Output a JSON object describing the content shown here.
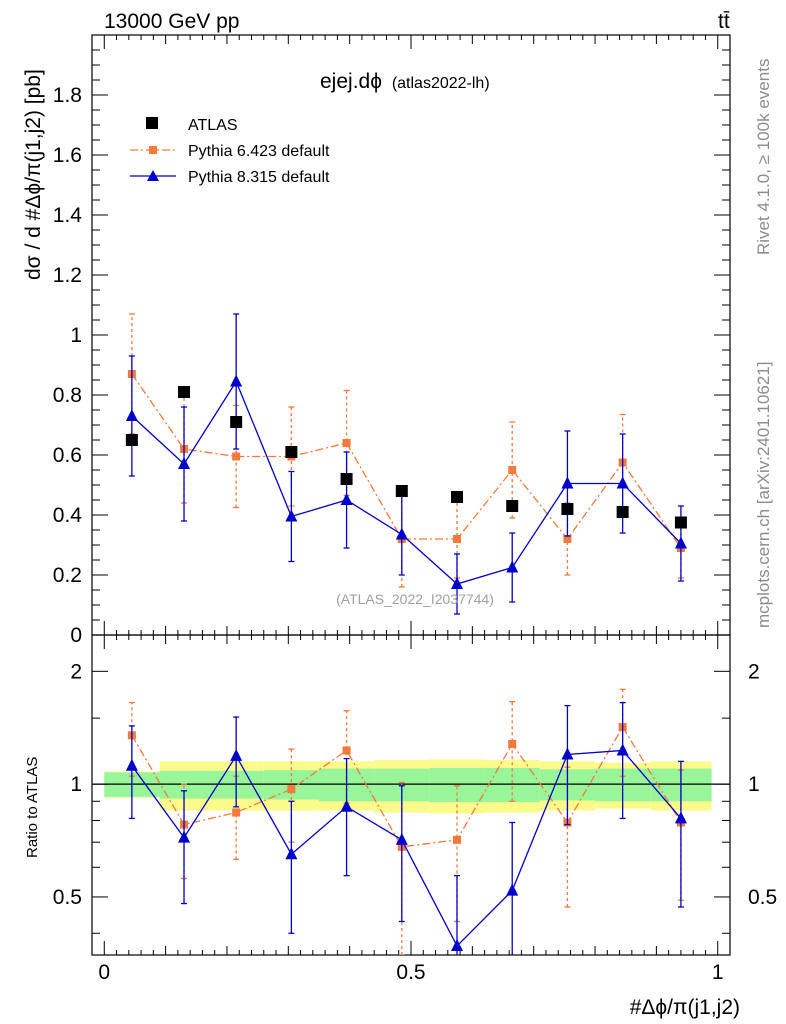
{
  "header": {
    "energy_label": "13000 GeV pp",
    "process_label": "tt̄"
  },
  "side_labels": {
    "rivet": "Rivet 4.1.0, ≥ 100k events",
    "mcplots": "mcplots.cern.ch [arXiv:2401.10621]"
  },
  "colors": {
    "atlas": "#000000",
    "pythia6": "#f4793b",
    "pythia8": "#0000cc",
    "band_inner": "#99f599",
    "band_outer": "#fbfb8c"
  },
  "chart_data": [
    {
      "type": "scatter",
      "panel": "main",
      "title": "ejej.dϕ",
      "title_note": "(atlas2022-lh)",
      "watermark": "(ATLAS_2022_I2037744)",
      "ylabel": "dσ / d #Δϕ/π(j1,j2) [pb]",
      "ylim": [
        0,
        2.0
      ],
      "yticks": [
        0,
        0.2,
        0.4,
        0.6,
        0.8,
        1,
        1.2,
        1.4,
        1.6,
        1.8
      ],
      "ytick_labels": [
        "0",
        "0.2",
        "0.4",
        "0.6",
        "0.8",
        "1",
        "1.2",
        "1.4",
        "1.6",
        "1.8"
      ],
      "legend_position": "top-left",
      "x": [
        0.045,
        0.13,
        0.215,
        0.305,
        0.395,
        0.485,
        0.575,
        0.665,
        0.755,
        0.845,
        0.94
      ],
      "series": [
        {
          "name": "ATLAS",
          "style": "square",
          "values": [
            0.65,
            0.81,
            0.71,
            0.61,
            0.52,
            0.48,
            0.46,
            0.43,
            0.42,
            0.41,
            0.375
          ]
        },
        {
          "name": "Pythia 6.423 default",
          "style": "dashdot-square",
          "values": [
            0.87,
            0.62,
            0.595,
            0.595,
            0.64,
            0.32,
            0.32,
            0.55,
            0.32,
            0.575,
            0.29
          ],
          "errors": [
            0.2,
            0.18,
            0.17,
            0.165,
            0.175,
            0.16,
            0.13,
            0.16,
            0.12,
            0.16,
            0.1
          ]
        },
        {
          "name": "Pythia 8.315 default",
          "style": "solid-triangle",
          "values": [
            0.73,
            0.57,
            0.845,
            0.395,
            0.45,
            0.335,
            0.17,
            0.225,
            0.505,
            0.505,
            0.305
          ],
          "errors": [
            0.2,
            0.19,
            0.225,
            0.15,
            0.16,
            0.135,
            0.1,
            0.115,
            0.175,
            0.165,
            0.125
          ]
        }
      ]
    },
    {
      "type": "scatter",
      "panel": "ratio",
      "ylabel": "Ratio to ATLAS",
      "xlabel": "#Δϕ/π(j1,j2)",
      "ylim": [
        0.35,
        2.5
      ],
      "log_y": true,
      "yticks": [
        0.5,
        1,
        2
      ],
      "ytick_labels": [
        "0.5",
        "1",
        "2"
      ],
      "xlim": [
        -0.02,
        1.02
      ],
      "xticks": [
        0,
        0.5,
        1
      ],
      "xtick_labels": [
        "0",
        "0.5",
        "1"
      ],
      "x": [
        0.045,
        0.13,
        0.215,
        0.305,
        0.395,
        0.485,
        0.575,
        0.665,
        0.755,
        0.845,
        0.94
      ],
      "bin_edges": [
        0,
        0.09,
        0.17,
        0.26,
        0.35,
        0.44,
        0.53,
        0.62,
        0.71,
        0.8,
        0.89,
        0.99
      ],
      "band_inner": [
        0.075,
        0.085,
        0.085,
        0.09,
        0.1,
        0.1,
        0.105,
        0.105,
        0.095,
        0.1,
        0.1
      ],
      "band_outer": [
        0.08,
        0.15,
        0.15,
        0.15,
        0.15,
        0.16,
        0.165,
        0.16,
        0.15,
        0.14,
        0.15
      ],
      "series": [
        {
          "name": "Pythia 6.423 default",
          "style": "dashdot-square",
          "values": [
            1.35,
            0.78,
            0.84,
            0.97,
            1.23,
            0.68,
            0.71,
            1.28,
            0.79,
            1.42,
            0.79
          ],
          "errors": [
            0.3,
            0.22,
            0.21,
            0.27,
            0.34,
            0.33,
            0.28,
            0.38,
            0.32,
            0.37,
            0.3
          ]
        },
        {
          "name": "Pythia 8.315 default",
          "style": "solid-triangle",
          "values": [
            1.12,
            0.72,
            1.19,
            0.65,
            0.87,
            0.71,
            0.37,
            0.52,
            1.2,
            1.23,
            0.81
          ],
          "errors": [
            0.31,
            0.24,
            0.32,
            0.25,
            0.3,
            0.28,
            0.2,
            0.27,
            0.42,
            0.42,
            0.34
          ]
        }
      ]
    }
  ]
}
